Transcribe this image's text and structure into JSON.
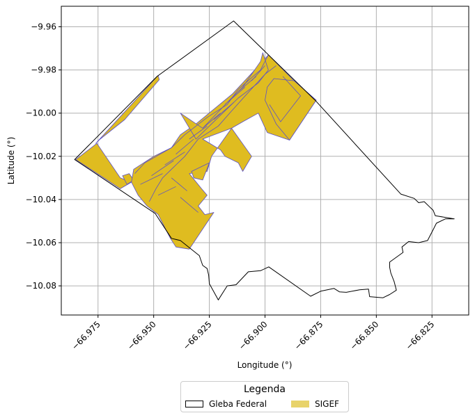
{
  "chart_data": {
    "type": "map",
    "xlabel": "Longitude (°)",
    "ylabel": "Latitude (°)",
    "xlim": [
      -66.9915,
      -66.8085
    ],
    "ylim": [
      -10.0935,
      -9.9505
    ],
    "x_ticks": [
      -66.975,
      -66.95,
      -66.925,
      -66.9,
      -66.875,
      -66.85,
      -66.825
    ],
    "x_tick_labels": [
      "−66.975",
      "−66.950",
      "−66.925",
      "−66.900",
      "−66.875",
      "−66.850",
      "−66.825"
    ],
    "y_ticks": [
      -9.96,
      -9.98,
      -10.0,
      -10.02,
      -10.04,
      -10.06,
      -10.08
    ],
    "y_tick_labels": [
      "−9.96",
      "−9.98",
      "−10.00",
      "−10.02",
      "−10.04",
      "−10.06",
      "−10.08"
    ],
    "grid": true,
    "legend": {
      "title": "Legenda",
      "placement": "below",
      "entries": [
        {
          "label": "Gleba Federal",
          "style": "outline"
        },
        {
          "label": "SIGEF",
          "style": "fill"
        }
      ]
    },
    "colors": {
      "gleba_edge": "#000000",
      "sigef_fill": "#dfbc20",
      "sigef_edge": "#5a50c8",
      "legend_sigef": "#e8d36a",
      "grid": "#b0b0b0"
    },
    "gleba_boundary": [
      [
        -66.9141,
        -9.9573
      ],
      [
        -66.8775,
        -9.994
      ],
      [
        -66.839,
        -10.0375
      ],
      [
        -66.833,
        -10.0395
      ],
      [
        -66.831,
        -10.0415
      ],
      [
        -66.8285,
        -10.041
      ],
      [
        -66.826,
        -10.0435
      ],
      [
        -66.8245,
        -10.045
      ],
      [
        -66.8235,
        -10.0475
      ],
      [
        -66.815,
        -10.049
      ],
      [
        -66.819,
        -10.049
      ],
      [
        -66.823,
        -10.051
      ],
      [
        -66.8245,
        -10.054
      ],
      [
        -66.827,
        -10.059
      ],
      [
        -66.831,
        -10.06
      ],
      [
        -66.8355,
        -10.0595
      ],
      [
        -66.8385,
        -10.062
      ],
      [
        -66.838,
        -10.0645
      ],
      [
        -66.84,
        -10.066
      ],
      [
        -66.844,
        -10.069
      ],
      [
        -66.844,
        -10.0715
      ],
      [
        -66.8435,
        -10.074
      ],
      [
        -66.842,
        -10.078
      ],
      [
        -66.841,
        -10.082
      ],
      [
        -66.844,
        -10.084
      ],
      [
        -66.847,
        -10.0855
      ],
      [
        -66.853,
        -10.085
      ],
      [
        -66.8535,
        -10.0815
      ],
      [
        -66.8575,
        -10.0818
      ],
      [
        -66.8635,
        -10.083
      ],
      [
        -66.8665,
        -10.0828
      ],
      [
        -66.869,
        -10.0812
      ],
      [
        -66.875,
        -10.0825
      ],
      [
        -66.8795,
        -10.0848
      ],
      [
        -66.8983,
        -10.0712
      ],
      [
        -66.902,
        -10.073
      ],
      [
        -66.9075,
        -10.0735
      ],
      [
        -66.913,
        -10.0795
      ],
      [
        -66.917,
        -10.08
      ],
      [
        -66.921,
        -10.0865
      ],
      [
        -66.925,
        -10.079
      ],
      [
        -66.9253,
        -10.075
      ],
      [
        -66.926,
        -10.072
      ],
      [
        -66.928,
        -10.0705
      ],
      [
        -66.9295,
        -10.066
      ],
      [
        -66.938,
        -10.059
      ],
      [
        -66.942,
        -10.058
      ],
      [
        -66.9493,
        -10.0465
      ],
      [
        -66.9855,
        -10.0215
      ],
      [
        -66.9485,
        -9.983
      ]
    ],
    "sigef_parcels": [
      [
        [
          -66.985,
          -10.0215
        ],
        [
          -66.9755,
          -10.014
        ],
        [
          -66.965,
          -10.03
        ],
        [
          -66.96,
          -10.032
        ],
        [
          -66.965,
          -10.035
        ]
      ],
      [
        [
          -66.976,
          -10.014
        ],
        [
          -66.948,
          -9.9825
        ],
        [
          -66.9475,
          -9.9845
        ],
        [
          -66.963,
          -10.003
        ],
        [
          -66.974,
          -10.012
        ]
      ],
      [
        [
          -66.964,
          -10.029
        ],
        [
          -66.962,
          -10.033
        ],
        [
          -66.959,
          -10.031
        ],
        [
          -66.961,
          -10.028
        ]
      ],
      [
        [
          -66.959,
          -10.026
        ],
        [
          -66.95,
          -10.02
        ],
        [
          -66.942,
          -10.016
        ],
        [
          -66.938,
          -10.01
        ],
        [
          -66.931,
          -10.005
        ],
        [
          -66.9145,
          -9.991
        ],
        [
          -66.901,
          -9.976
        ],
        [
          -66.8985,
          -9.973
        ],
        [
          -66.887,
          -9.985
        ],
        [
          -66.877,
          -9.994
        ],
        [
          -66.889,
          -10.0125
        ],
        [
          -66.899,
          -10.009
        ],
        [
          -66.903,
          -10.0
        ],
        [
          -66.91,
          -10.004
        ],
        [
          -66.915,
          -10.007
        ],
        [
          -66.928,
          -10.012
        ],
        [
          -66.92,
          -10.017
        ],
        [
          -66.918,
          -10.02
        ],
        [
          -66.912,
          -10.023
        ],
        [
          -66.91,
          -10.027
        ],
        [
          -66.906,
          -10.02
        ],
        [
          -66.915,
          -10.007
        ],
        [
          -66.924,
          -10.02
        ],
        [
          -66.926,
          -10.027
        ],
        [
          -66.934,
          -10.028
        ],
        [
          -66.9285,
          -10.035
        ],
        [
          -66.926,
          -10.038
        ],
        [
          -66.93,
          -10.043
        ],
        [
          -66.927,
          -10.047
        ],
        [
          -66.923,
          -10.046
        ],
        [
          -66.9295,
          -10.056
        ],
        [
          -66.934,
          -10.063
        ],
        [
          -66.94,
          -10.062
        ],
        [
          -66.9425,
          -10.058
        ],
        [
          -66.948,
          -10.047
        ],
        [
          -66.953,
          -10.043
        ],
        [
          -66.957,
          -10.038
        ],
        [
          -66.96,
          -10.032
        ]
      ],
      [
        [
          -66.938,
          -10.0
        ],
        [
          -66.928,
          -10.007
        ],
        [
          -66.916,
          -9.994
        ],
        [
          -66.91,
          -9.988
        ],
        [
          -66.902,
          -9.976
        ],
        [
          -66.901,
          -9.972
        ],
        [
          -66.8985,
          -9.98
        ],
        [
          -66.903,
          -9.986
        ],
        [
          -66.912,
          -9.993
        ],
        [
          -66.924,
          -10.005
        ],
        [
          -66.931,
          -10.012
        ]
      ],
      [
        [
          -66.887,
          -9.985
        ],
        [
          -66.877,
          -9.994
        ],
        [
          -66.889,
          -10.0125
        ],
        [
          -66.895,
          -10.005
        ],
        [
          -66.9,
          -9.994
        ],
        [
          -66.899,
          -9.988
        ],
        [
          -66.896,
          -9.984
        ]
      ],
      [
        [
          -66.933,
          -10.027
        ],
        [
          -66.925,
          -10.023
        ],
        [
          -66.928,
          -10.031
        ],
        [
          -66.932,
          -10.03
        ]
      ]
    ],
    "sigef_lines": [
      [
        [
          -66.9585,
          -10.028
        ],
        [
          -66.954,
          -10.023
        ],
        [
          -66.942,
          -10.016
        ],
        [
          -66.936,
          -10.01
        ],
        [
          -66.926,
          -10.002
        ],
        [
          -66.917,
          -9.996
        ],
        [
          -66.912,
          -9.989
        ],
        [
          -66.902,
          -9.98
        ],
        [
          -66.8985,
          -9.973
        ]
      ],
      [
        [
          -66.952,
          -10.041
        ],
        [
          -66.949,
          -10.035
        ],
        [
          -66.946,
          -10.03
        ],
        [
          -66.941,
          -10.025
        ],
        [
          -66.936,
          -10.02
        ],
        [
          -66.93,
          -10.012
        ],
        [
          -66.921,
          -10.006
        ],
        [
          -66.915,
          -9.999
        ],
        [
          -66.908,
          -9.991
        ],
        [
          -66.9,
          -9.982
        ],
        [
          -66.895,
          -9.978
        ]
      ],
      [
        [
          -66.94,
          -10.034
        ],
        [
          -66.948,
          -10.038
        ]
      ],
      [
        [
          -66.946,
          -10.028
        ],
        [
          -66.956,
          -10.033
        ]
      ],
      [
        [
          -66.941,
          -10.022
        ],
        [
          -66.951,
          -10.029
        ]
      ],
      [
        [
          -66.936,
          -10.018
        ],
        [
          -66.945,
          -10.024
        ]
      ],
      [
        [
          -66.932,
          -10.012
        ],
        [
          -66.94,
          -10.019
        ]
      ],
      [
        [
          -66.926,
          -10.006
        ],
        [
          -66.934,
          -10.012
        ]
      ],
      [
        [
          -66.92,
          -10.0
        ],
        [
          -66.928,
          -10.007
        ]
      ],
      [
        [
          -66.914,
          -9.995
        ],
        [
          -66.923,
          -10.003
        ]
      ],
      [
        [
          -66.909,
          -9.988
        ],
        [
          -66.918,
          -9.996
        ]
      ],
      [
        [
          -66.904,
          -9.983
        ],
        [
          -66.912,
          -9.99
        ]
      ],
      [
        [
          -66.9,
          -9.978
        ],
        [
          -66.906,
          -9.985
        ]
      ],
      [
        [
          -66.892,
          -9.983
        ],
        [
          -66.884,
          -9.992
        ],
        [
          -66.893,
          -10.004
        ],
        [
          -66.898,
          -9.996
        ]
      ],
      [
        [
          -66.938,
          -10.039
        ],
        [
          -66.93,
          -10.046
        ]
      ],
      [
        [
          -66.942,
          -10.03
        ],
        [
          -66.935,
          -10.036
        ]
      ]
    ]
  }
}
